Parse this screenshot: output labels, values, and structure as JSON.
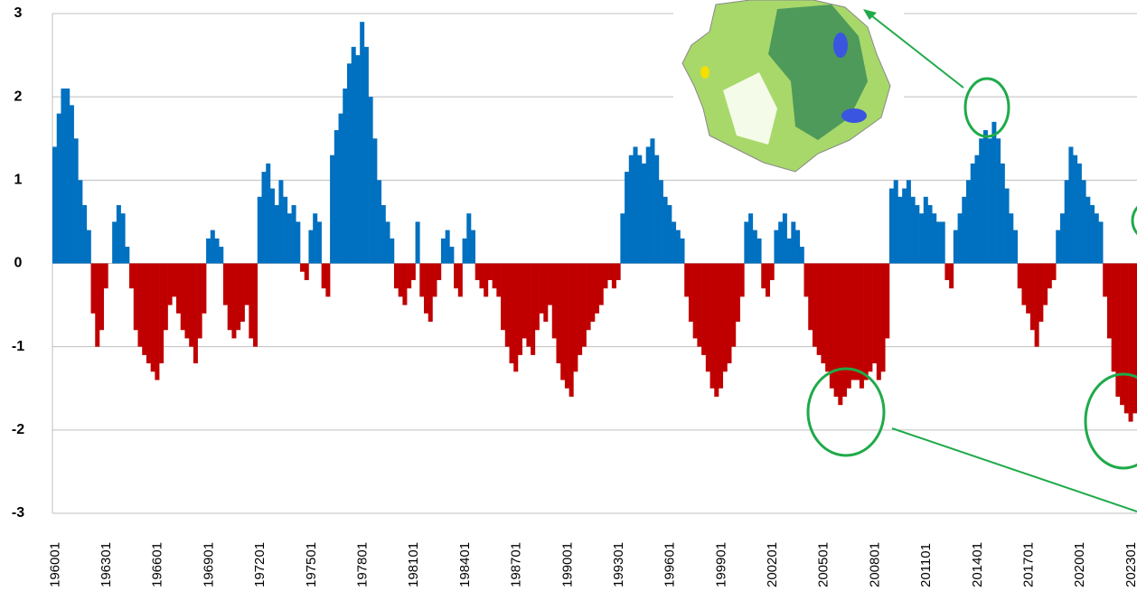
{
  "chart_data": {
    "type": "bar",
    "categories": [
      "196001",
      null,
      null,
      null,
      null,
      null,
      null,
      null,
      null,
      null,
      null,
      null,
      "196301",
      null,
      null,
      null,
      null,
      null,
      null,
      null,
      null,
      null,
      null,
      null,
      "196601",
      null,
      null,
      null,
      null,
      null,
      null,
      null,
      null,
      null,
      null,
      null,
      "196901",
      null,
      null,
      null,
      null,
      null,
      null,
      null,
      null,
      null,
      null,
      null,
      "197201",
      null,
      null,
      null,
      null,
      null,
      null,
      null,
      null,
      null,
      null,
      null,
      "197501",
      null,
      null,
      null,
      null,
      null,
      null,
      null,
      null,
      null,
      null,
      null,
      "197801",
      null,
      null,
      null,
      null,
      null,
      null,
      null,
      null,
      null,
      null,
      null,
      "198101",
      null,
      null,
      null,
      null,
      null,
      null,
      null,
      null,
      null,
      null,
      null,
      "198401",
      null,
      null,
      null,
      null,
      null,
      null,
      null,
      null,
      null,
      null,
      null,
      "198701",
      null,
      null,
      null,
      null,
      null,
      null,
      null,
      null,
      null,
      null,
      null,
      "199001",
      null,
      null,
      null,
      null,
      null,
      null,
      null,
      null,
      null,
      null,
      null,
      "199301",
      null,
      null,
      null,
      null,
      null,
      null,
      null,
      null,
      null,
      null,
      null,
      "199601",
      null,
      null,
      null,
      null,
      null,
      null,
      null,
      null,
      null,
      null,
      null,
      "199901",
      null,
      null,
      null,
      null,
      null,
      null,
      null,
      null,
      null,
      null,
      null,
      "200201",
      null,
      null,
      null,
      null,
      null,
      null,
      null,
      null,
      null,
      null,
      null,
      "200501",
      null,
      null,
      null,
      null,
      null,
      null,
      null,
      null,
      null,
      null,
      null,
      "200801",
      null,
      null,
      null,
      null,
      null,
      null,
      null,
      null,
      null,
      null,
      null,
      "201101",
      null,
      null,
      null,
      null,
      null,
      null,
      null,
      null,
      null,
      null,
      null,
      "201401",
      null,
      null,
      null,
      null,
      null,
      null,
      null,
      null,
      null,
      null,
      null,
      "201701",
      null,
      null,
      null,
      null,
      null,
      null,
      null,
      null,
      null,
      null,
      null,
      "202001",
      null,
      null,
      null,
      null,
      null,
      null,
      null,
      null,
      null,
      null,
      null,
      "202301",
      null
    ],
    "values": [
      1.4,
      1.8,
      2.1,
      2.1,
      1.9,
      1.5,
      1.0,
      0.7,
      0.4,
      -0.6,
      -1.0,
      -0.8,
      -0.3,
      0,
      0.5,
      0.7,
      0.6,
      0.2,
      -0.3,
      -0.8,
      -1.0,
      -1.1,
      -1.2,
      -1.3,
      -1.4,
      -1.2,
      -0.8,
      -0.5,
      -0.4,
      -0.6,
      -0.8,
      -0.9,
      -1.0,
      -1.2,
      -0.9,
      -0.6,
      0.3,
      0.4,
      0.3,
      0.2,
      -0.5,
      -0.8,
      -0.9,
      -0.8,
      -0.7,
      -0.5,
      -0.9,
      -1.0,
      0.8,
      1.1,
      1.2,
      0.9,
      0.7,
      1.0,
      0.8,
      0.6,
      0.7,
      0.5,
      -0.1,
      -0.2,
      0.4,
      0.6,
      0.5,
      -0.3,
      -0.4,
      1.3,
      1.6,
      1.8,
      2.1,
      2.4,
      2.6,
      2.5,
      2.9,
      2.6,
      2.0,
      1.5,
      1.0,
      0.7,
      0.5,
      0.3,
      -0.3,
      -0.4,
      -0.5,
      -0.3,
      -0.2,
      0.5,
      -0.4,
      -0.6,
      -0.7,
      -0.4,
      -0.2,
      0.3,
      0.4,
      0.2,
      -0.3,
      -0.4,
      0.3,
      0.6,
      0.4,
      -0.2,
      -0.3,
      -0.4,
      -0.2,
      -0.3,
      -0.4,
      -0.8,
      -1.0,
      -1.2,
      -1.3,
      -1.1,
      -0.9,
      -1.0,
      -1.1,
      -0.8,
      -0.6,
      -0.7,
      -0.5,
      -0.9,
      -1.2,
      -1.4,
      -1.5,
      -1.6,
      -1.3,
      -1.1,
      -1.0,
      -0.8,
      -0.7,
      -0.6,
      -0.5,
      -0.3,
      -0.2,
      -0.3,
      -0.2,
      0.6,
      1.1,
      1.3,
      1.4,
      1.3,
      1.2,
      1.4,
      1.5,
      1.3,
      1.0,
      0.8,
      0.7,
      0.5,
      0.4,
      0.3,
      -0.4,
      -0.7,
      -0.9,
      -1.0,
      -1.1,
      -1.3,
      -1.5,
      -1.6,
      -1.5,
      -1.3,
      -1.2,
      -1.0,
      -0.7,
      -0.4,
      0.5,
      0.6,
      0.4,
      0.3,
      -0.3,
      -0.4,
      -0.2,
      0.4,
      0.5,
      0.6,
      0.3,
      0.5,
      0.4,
      0.2,
      -0.4,
      -0.8,
      -1.0,
      -1.1,
      -1.2,
      -1.3,
      -1.5,
      -1.6,
      -1.7,
      -1.6,
      -1.5,
      -1.4,
      -1.4,
      -1.5,
      -1.4,
      -1.3,
      -1.2,
      -1.4,
      -1.3,
      -0.9,
      0.9,
      1.0,
      0.8,
      0.9,
      1.0,
      0.8,
      0.7,
      0.6,
      0.8,
      0.7,
      0.6,
      0.5,
      0.5,
      -0.2,
      -0.3,
      0.4,
      0.6,
      0.8,
      1.0,
      1.2,
      1.3,
      1.5,
      1.6,
      1.5,
      1.7,
      1.5,
      1.2,
      0.9,
      0.6,
      0.4,
      -0.3,
      -0.5,
      -0.6,
      -0.8,
      -1.0,
      -0.7,
      -0.5,
      -0.3,
      -0.2,
      0.4,
      0.6,
      1.0,
      1.4,
      1.3,
      1.2,
      1.0,
      0.8,
      0.7,
      0.6,
      0.5,
      -0.4,
      -0.9,
      -1.3,
      -1.6,
      -1.7,
      -1.8,
      -1.9,
      -1.8
    ],
    "colors": {
      "positive": "#0070c0",
      "negative": "#c00000"
    },
    "ylim": [
      -3,
      3
    ],
    "yticks": [
      -3,
      -2,
      -1,
      0,
      1,
      2,
      3
    ],
    "grid": true
  }
}
